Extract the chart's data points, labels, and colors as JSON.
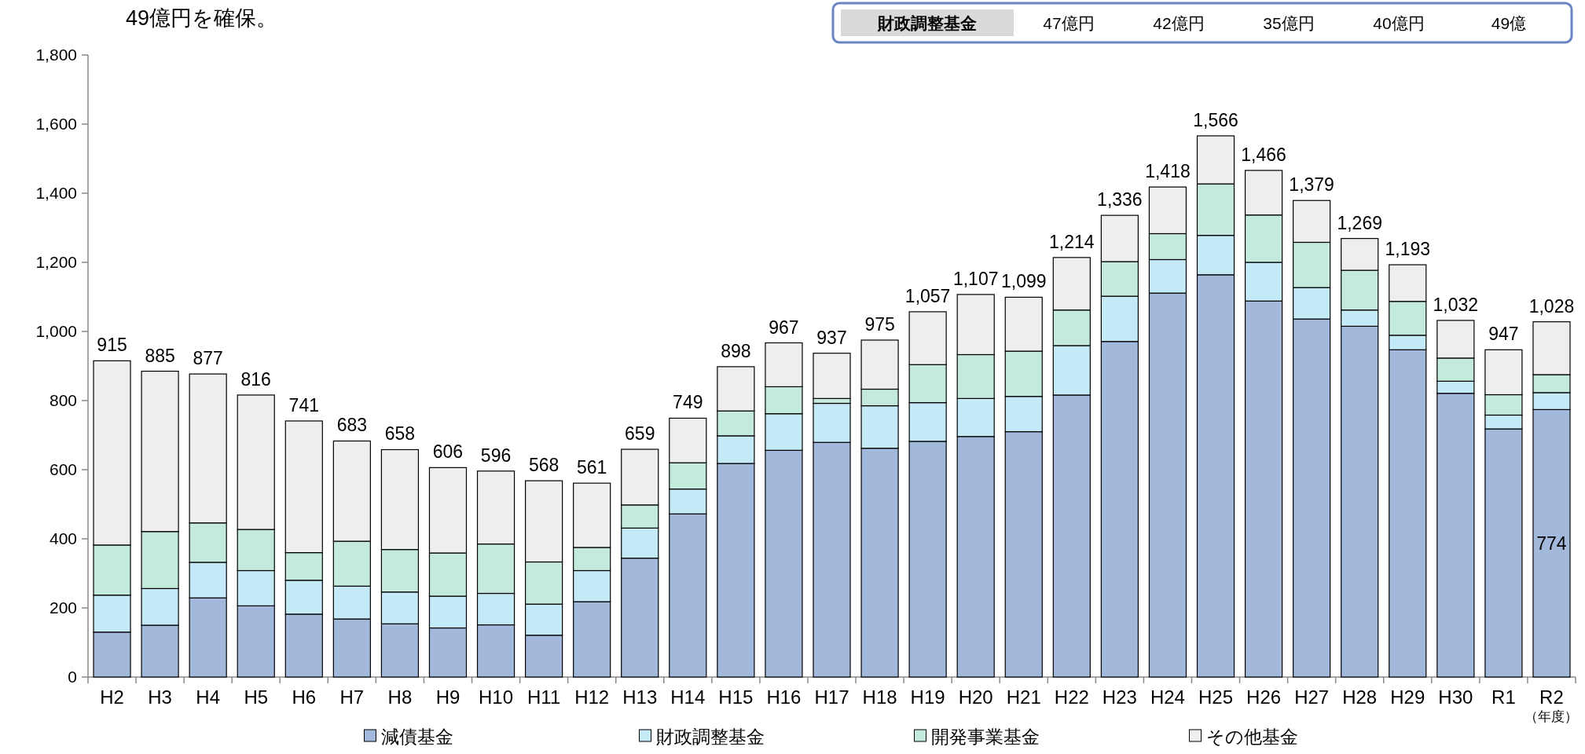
{
  "chart_data": {
    "type": "bar",
    "stacked": true,
    "categories": [
      "H2",
      "H3",
      "H4",
      "H5",
      "H6",
      "H7",
      "H8",
      "H9",
      "H10",
      "H11",
      "H12",
      "H13",
      "H14",
      "H15",
      "H16",
      "H17",
      "H18",
      "H19",
      "H20",
      "H21",
      "H22",
      "H23",
      "H24",
      "H25",
      "H26",
      "H27",
      "H28",
      "H29",
      "H30",
      "R1",
      "R2"
    ],
    "xlabel": "（年度）",
    "series": [
      {
        "name": "減債基金",
        "color": "#a3b9dc",
        "values": [
          130,
          150,
          229,
          206,
          182,
          168,
          154,
          142,
          151,
          121,
          218,
          344,
          472,
          618,
          656,
          679,
          662,
          682,
          696,
          710,
          816,
          971,
          1111,
          1164,
          1088,
          1036,
          1015,
          947,
          821,
          718,
          774
        ],
        "value_labels": [
          null,
          null,
          null,
          null,
          null,
          null,
          null,
          null,
          null,
          null,
          null,
          null,
          null,
          null,
          null,
          null,
          null,
          null,
          null,
          null,
          null,
          null,
          null,
          null,
          null,
          null,
          null,
          null,
          null,
          null,
          "774"
        ]
      },
      {
        "name": "財政調整基金",
        "color": "#c4e9f7",
        "values": [
          107,
          106,
          103,
          102,
          98,
          95,
          92,
          92,
          91,
          90,
          90,
          87,
          72,
          80,
          106,
          113,
          123,
          112,
          110,
          102,
          143,
          131,
          97,
          114,
          112,
          91,
          47,
          42,
          35,
          40,
          49
        ]
      },
      {
        "name": "開発事業基金",
        "color": "#c3eadd",
        "values": [
          145,
          165,
          114,
          119,
          80,
          130,
          123,
          125,
          143,
          122,
          67,
          67,
          76,
          72,
          78,
          14,
          48,
          110,
          127,
          131,
          103,
          100,
          75,
          149,
          137,
          131,
          115,
          98,
          67,
          59,
          52
        ]
      },
      {
        "name": "その他基金",
        "color": "#eeeeee",
        "values": [
          533,
          464,
          431,
          389,
          381,
          290,
          289,
          247,
          211,
          235,
          186,
          161,
          129,
          128,
          127,
          131,
          142,
          153,
          174,
          156,
          152,
          134,
          135,
          139,
          129,
          121,
          92,
          106,
          109,
          130,
          153
        ]
      }
    ],
    "totals": [
      "915",
      "885",
      "877",
      "816",
      "741",
      "683",
      "658",
      "606",
      "596",
      "568",
      "561",
      "659",
      "749",
      "898",
      "967",
      "937",
      "975",
      "1,057",
      "1,107",
      "1,099",
      "1,214",
      "1,336",
      "1,418",
      "1,566",
      "1,466",
      "1,379",
      "1,269",
      "1,193",
      "1,032",
      "947",
      "1,028"
    ],
    "ylim": [
      0,
      1800
    ],
    "yticks": [
      0,
      200,
      400,
      600,
      800,
      {
        "value": 1000,
        "label": "1,000"
      },
      {
        "value": 1200,
        "label": "1,200"
      },
      {
        "value": 1400,
        "label": "1,400"
      },
      {
        "value": 1600,
        "label": "1,600"
      },
      {
        "value": 1800,
        "label": "1,800"
      }
    ],
    "legend": "bottom",
    "annotations": [
      "49億円を確保。",
      "財政調整基金",
      "47億円",
      "42億円",
      "35億円",
      "40億円",
      "49億"
    ]
  }
}
